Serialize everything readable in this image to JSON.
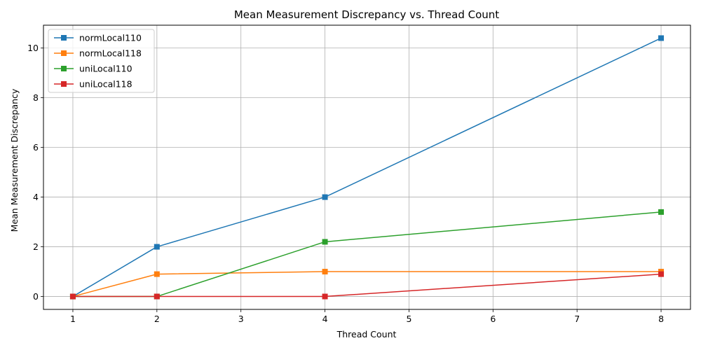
{
  "chart_data": {
    "type": "line",
    "title": "Mean Measurement Discrepancy vs. Thread Count",
    "xlabel": "Thread Count",
    "ylabel": "Mean Measurement Discrepancy",
    "xlim": [
      0.65,
      8.35
    ],
    "ylim": [
      -0.52,
      10.92
    ],
    "xticks": [
      1,
      2,
      3,
      4,
      5,
      6,
      7,
      8
    ],
    "yticks": [
      0,
      2,
      4,
      6,
      8,
      10
    ],
    "grid": true,
    "legend_position": "top-left",
    "marker": "square",
    "series": [
      {
        "name": "normLocal110",
        "color": "#1f77b4",
        "x": [
          1,
          2,
          4,
          8
        ],
        "y": [
          0,
          2.0,
          4.0,
          10.4
        ]
      },
      {
        "name": "normLocal118",
        "color": "#ff7f0e",
        "x": [
          1,
          2,
          4,
          8
        ],
        "y": [
          0,
          0.9,
          1.0,
          1.0
        ]
      },
      {
        "name": "uniLocal110",
        "color": "#2ca02c",
        "x": [
          1,
          2,
          4,
          8
        ],
        "y": [
          0,
          0,
          2.2,
          3.4
        ]
      },
      {
        "name": "uniLocal118",
        "color": "#d62728",
        "x": [
          1,
          2,
          4,
          8
        ],
        "y": [
          0,
          0,
          0,
          0.9
        ]
      }
    ]
  }
}
